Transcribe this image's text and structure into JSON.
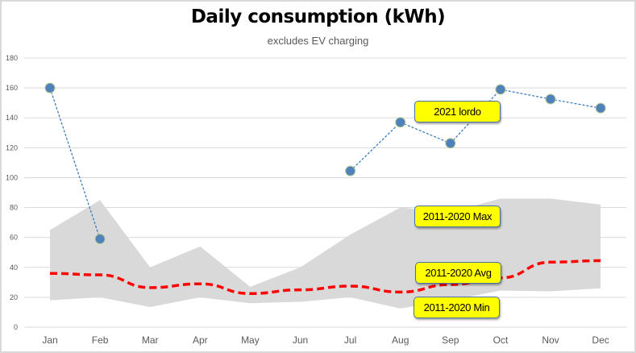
{
  "chart_data": {
    "type": "line",
    "title": "Daily consumption (kWh)",
    "subtitle": "excludes EV charging",
    "xlabel": "",
    "ylabel": "",
    "ylim": [
      0,
      180
    ],
    "yticks": [
      0,
      20,
      40,
      60,
      80,
      100,
      120,
      140,
      160,
      180
    ],
    "grid": true,
    "categories": [
      "Jan",
      "Feb",
      "Mar",
      "Apr",
      "May",
      "Jun",
      "Jul",
      "Aug",
      "Sep",
      "Oct",
      "Nov",
      "Dec"
    ],
    "series": [
      {
        "name": "2011-2020 Max",
        "kind": "band-upper",
        "color": "#d9d9d9",
        "values": [
          65,
          85,
          40,
          54,
          27,
          40,
          62,
          80,
          77,
          86,
          86,
          82
        ]
      },
      {
        "name": "2011-2020 Min",
        "kind": "band-lower",
        "color": "#d9d9d9",
        "values": [
          18,
          20,
          13.5,
          20,
          16,
          17,
          20,
          12.5,
          18,
          24.5,
          24,
          26
        ]
      },
      {
        "name": "2011-2020 Avg",
        "kind": "dashed-line",
        "color": "#ff0000",
        "values": [
          36,
          35,
          26.5,
          29,
          22.5,
          25,
          27.5,
          23.5,
          28.5,
          33,
          43.5,
          44.5
        ]
      },
      {
        "name": "2021 lordo",
        "kind": "dotted-line-markers",
        "color": "#2e75b6",
        "marker_color": "#4f81bd",
        "values": [
          160,
          59,
          null,
          null,
          null,
          null,
          104.5,
          137,
          123,
          159,
          152.5,
          146.5
        ]
      }
    ],
    "annotations": [
      {
        "text": "2021 lordo",
        "series": "2021 lordo"
      },
      {
        "text": "2011-2020 Max",
        "series": "2011-2020 Max"
      },
      {
        "text": "2011-2020 Avg",
        "series": "2011-2020 Avg"
      },
      {
        "text": "2011-2020 Min",
        "series": "2011-2020 Min"
      }
    ],
    "callout_color": "#ffff00"
  }
}
